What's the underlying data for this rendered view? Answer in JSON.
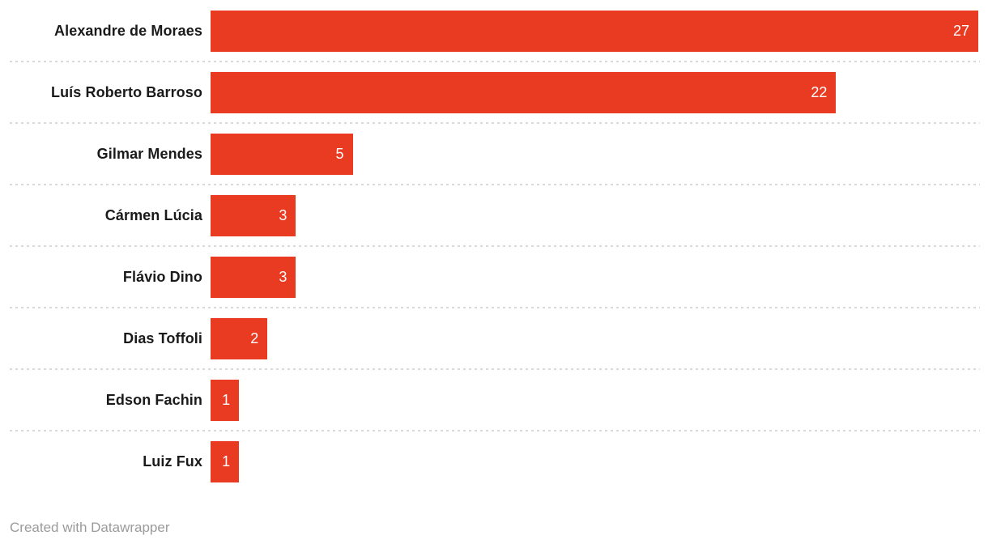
{
  "chart_data": {
    "type": "bar",
    "orientation": "horizontal",
    "categories": [
      "Alexandre de Moraes",
      "Luís Roberto Barroso",
      "Gilmar Mendes",
      "Cármen Lúcia",
      "Flávio Dino",
      "Dias Toffoli",
      "Edson Fachin",
      "Luiz Fux"
    ],
    "values": [
      27,
      22,
      5,
      3,
      3,
      2,
      1,
      1
    ],
    "title": "",
    "xlabel": "",
    "ylabel": "",
    "xlim": [
      0,
      27
    ],
    "grid": false,
    "legend": false,
    "value_labels": "inside-end, white"
  },
  "colors": {
    "bar": "#e93a22",
    "label_text": "#1a1a1a",
    "value_text": "#ffffff",
    "separator": "#d9d9d9",
    "footer_text": "#9b9b9b",
    "background": "#ffffff"
  },
  "footer": {
    "text": "Created with Datawrapper"
  }
}
